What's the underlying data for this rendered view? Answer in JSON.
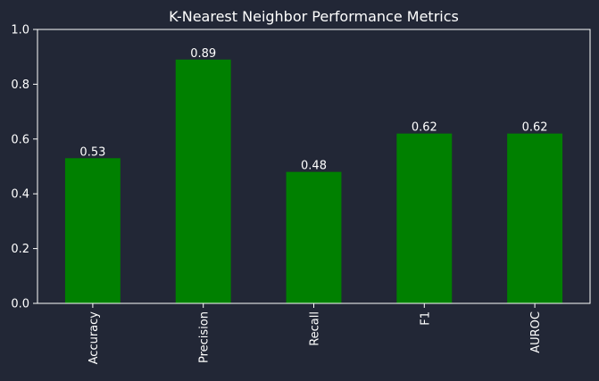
{
  "chart_data": {
    "type": "bar",
    "title": "K-Nearest Neighbor Performance Metrics",
    "categories": [
      "Accuracy",
      "Precision",
      "Recall",
      "F1",
      "AUROC"
    ],
    "values": [
      0.53,
      0.89,
      0.48,
      0.62,
      0.62
    ],
    "value_labels": [
      "0.53",
      "0.89",
      "0.48",
      "0.62",
      "0.62"
    ],
    "xlabel": "",
    "ylabel": "",
    "ylim": [
      0,
      1.0
    ],
    "yticks": [
      0.0,
      0.2,
      0.4,
      0.6,
      0.8,
      1.0
    ],
    "ytick_labels": [
      "0.0",
      "0.2",
      "0.4",
      "0.6",
      "0.8",
      "1.0"
    ],
    "grid": false,
    "legend": "none",
    "colors": {
      "background": "#222736",
      "bar": "#008000",
      "text": "#ffffff",
      "axis": "#ffffff"
    }
  }
}
